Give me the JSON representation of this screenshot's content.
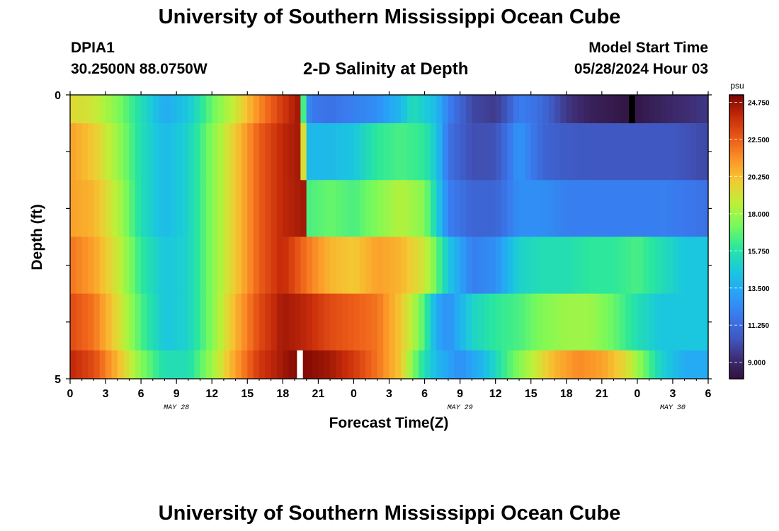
{
  "header": {
    "title": "University of Southern Mississippi Ocean Cube",
    "station_id": "DPIA1",
    "coords": "30.2500N  88.0750W",
    "subtitle": "2-D Salinity at Depth",
    "model_label": "Model Start Time",
    "model_time": "05/28/2024 Hour 03"
  },
  "footer": {
    "title": "University of Southern Mississippi Ocean Cube"
  },
  "chart_data": {
    "type": "heatmap",
    "title": "2-D Salinity at Depth",
    "xlabel": "Forecast Time(Z)",
    "ylabel": "Depth (ft)",
    "x_ticks": [
      "0",
      "3",
      "6",
      "9",
      "12",
      "15",
      "18",
      "21",
      "0",
      "3",
      "6",
      "9",
      "12",
      "15",
      "18",
      "21",
      "0",
      "3",
      "6"
    ],
    "date_labels": [
      "MAY 28",
      "MAY 29",
      "MAY 30"
    ],
    "y_ticks": [
      "0",
      "5"
    ],
    "ylim": [
      0,
      5
    ],
    "x_range_hours": [
      0,
      54
    ],
    "colorbar": {
      "unit": "psu",
      "ticks": [
        "24.750",
        "22.500",
        "20.250",
        "18.000",
        "15.750",
        "13.500",
        "11.250",
        "9.000"
      ],
      "min": 8.0,
      "max": 25.2
    },
    "rows": [
      {
        "depth_band": [
          0.0,
          0.5
        ],
        "salinity": [
          [
            0,
            19.5
          ],
          [
            2,
            19.0
          ],
          [
            4,
            17.5
          ],
          [
            6,
            15.5
          ],
          [
            8,
            13.5
          ],
          [
            10,
            14.5
          ],
          [
            12,
            17.0
          ],
          [
            14,
            19.0
          ],
          [
            16,
            21.5
          ],
          [
            18,
            23.5
          ],
          [
            19.3,
            24.5
          ],
          [
            19.8,
            15.5
          ],
          [
            20.3,
            11.8
          ],
          [
            22,
            11.5
          ],
          [
            24,
            12.0
          ],
          [
            26,
            12.5
          ],
          [
            28,
            14.0
          ],
          [
            29,
            15.5
          ],
          [
            31,
            14.0
          ],
          [
            32,
            12.0
          ],
          [
            34,
            10.0
          ],
          [
            36,
            9.6
          ],
          [
            37,
            10.5
          ],
          [
            38,
            12.0
          ],
          [
            40,
            11.2
          ],
          [
            42,
            9.5
          ],
          [
            44,
            8.7
          ],
          [
            47,
            8.2
          ],
          [
            48,
            8.3
          ],
          [
            51,
            9.0
          ],
          [
            54,
            9.5
          ]
        ]
      },
      {
        "depth_band": [
          0.5,
          1.5
        ],
        "salinity": [
          [
            0,
            21.0
          ],
          [
            2,
            20.0
          ],
          [
            4,
            18.0
          ],
          [
            6,
            15.5
          ],
          [
            8,
            14.0
          ],
          [
            10,
            15.0
          ],
          [
            12,
            17.5
          ],
          [
            14,
            20.0
          ],
          [
            16,
            22.5
          ],
          [
            18,
            24.0
          ],
          [
            19.5,
            24.5
          ],
          [
            20,
            14.0
          ],
          [
            22,
            14.0
          ],
          [
            24,
            14.5
          ],
          [
            26,
            16.0
          ],
          [
            28,
            16.5
          ],
          [
            30,
            16.0
          ],
          [
            31,
            14.5
          ],
          [
            32,
            11.5
          ],
          [
            34,
            10.2
          ],
          [
            36,
            10.3
          ],
          [
            37,
            11.5
          ],
          [
            38,
            12.8
          ],
          [
            40,
            11.0
          ],
          [
            42,
            10.6
          ],
          [
            44,
            10.5
          ],
          [
            48,
            10.5
          ],
          [
            51,
            10.5
          ],
          [
            54,
            10.0
          ]
        ]
      },
      {
        "depth_band": [
          1.5,
          2.5
        ],
        "salinity": [
          [
            0,
            21.0
          ],
          [
            2,
            20.5
          ],
          [
            4,
            18.5
          ],
          [
            6,
            15.5
          ],
          [
            8,
            14.0
          ],
          [
            10,
            15.0
          ],
          [
            12,
            17.5
          ],
          [
            14,
            20.0
          ],
          [
            16,
            22.5
          ],
          [
            18,
            24.0
          ],
          [
            19.8,
            24.5
          ],
          [
            20.2,
            16.5
          ],
          [
            22,
            17.0
          ],
          [
            24,
            16.5
          ],
          [
            26,
            17.5
          ],
          [
            28,
            18.5
          ],
          [
            30,
            17.5
          ],
          [
            31,
            15.0
          ],
          [
            32,
            12.0
          ],
          [
            34,
            11.0
          ],
          [
            36,
            11.0
          ],
          [
            38,
            12.5
          ],
          [
            40,
            12.5
          ],
          [
            42,
            12.0
          ],
          [
            46,
            12.0
          ],
          [
            50,
            12.0
          ],
          [
            54,
            11.5
          ]
        ]
      },
      {
        "depth_band": [
          2.5,
          3.5
        ],
        "salinity": [
          [
            0,
            22.0
          ],
          [
            2,
            21.0
          ],
          [
            4,
            19.0
          ],
          [
            6,
            16.0
          ],
          [
            8,
            14.5
          ],
          [
            10,
            15.0
          ],
          [
            12,
            17.5
          ],
          [
            14,
            20.0
          ],
          [
            16,
            22.5
          ],
          [
            18,
            24.0
          ],
          [
            20,
            22.0
          ],
          [
            22,
            20.5
          ],
          [
            24,
            20.0
          ],
          [
            26,
            21.0
          ],
          [
            28,
            20.5
          ],
          [
            30,
            19.0
          ],
          [
            31,
            17.0
          ],
          [
            32,
            14.5
          ],
          [
            34,
            12.0
          ],
          [
            36,
            12.5
          ],
          [
            38,
            15.0
          ],
          [
            40,
            15.5
          ],
          [
            42,
            15.5
          ],
          [
            44,
            16.0
          ],
          [
            46,
            16.0
          ],
          [
            48,
            16.5
          ],
          [
            50,
            15.5
          ],
          [
            52,
            14.5
          ],
          [
            54,
            14.5
          ]
        ]
      },
      {
        "depth_band": [
          3.5,
          4.5
        ],
        "salinity": [
          [
            0,
            23.0
          ],
          [
            2,
            22.0
          ],
          [
            4,
            19.5
          ],
          [
            6,
            16.5
          ],
          [
            8,
            14.5
          ],
          [
            10,
            15.0
          ],
          [
            12,
            17.5
          ],
          [
            14,
            20.5
          ],
          [
            16,
            23.0
          ],
          [
            18,
            24.5
          ],
          [
            20,
            24.0
          ],
          [
            22,
            23.0
          ],
          [
            24,
            22.5
          ],
          [
            26,
            22.0
          ],
          [
            28,
            20.0
          ],
          [
            29,
            18.5
          ],
          [
            30,
            16.5
          ],
          [
            31,
            13.5
          ],
          [
            32,
            12.5
          ],
          [
            34,
            15.0
          ],
          [
            36,
            16.0
          ],
          [
            38,
            16.5
          ],
          [
            40,
            17.5
          ],
          [
            42,
            18.0
          ],
          [
            44,
            18.0
          ],
          [
            46,
            17.0
          ],
          [
            48,
            15.5
          ],
          [
            50,
            14.5
          ],
          [
            52,
            14.5
          ],
          [
            54,
            14.5
          ]
        ]
      },
      {
        "depth_band": [
          4.5,
          5.0
        ],
        "salinity": [
          [
            0,
            24.0
          ],
          [
            2,
            23.0
          ],
          [
            4,
            20.5
          ],
          [
            6,
            17.5
          ],
          [
            8,
            15.5
          ],
          [
            10,
            15.5
          ],
          [
            12,
            18.0
          ],
          [
            14,
            21.0
          ],
          [
            16,
            23.5
          ],
          [
            19,
            25.0
          ],
          [
            20,
            25.0
          ],
          [
            22,
            24.5
          ],
          [
            24,
            23.5
          ],
          [
            26,
            22.0
          ],
          [
            28,
            20.0
          ],
          [
            29,
            17.5
          ],
          [
            30,
            15.5
          ],
          [
            31,
            14.0
          ],
          [
            33,
            12.5
          ],
          [
            35,
            14.0
          ],
          [
            37,
            16.5
          ],
          [
            39,
            18.5
          ],
          [
            41,
            20.5
          ],
          [
            43,
            21.5
          ],
          [
            45,
            21.0
          ],
          [
            47,
            19.5
          ],
          [
            48,
            18.0
          ],
          [
            50,
            15.0
          ],
          [
            52,
            13.5
          ],
          [
            54,
            13.5
          ]
        ]
      }
    ],
    "missing_cells": [
      {
        "x_hours": [
          19.2,
          19.7
        ],
        "depth_band": [
          4.5,
          5.0
        ],
        "color": "#ffffff"
      },
      {
        "x_hours": [
          47.3,
          47.8
        ],
        "depth_band": [
          0.0,
          0.5
        ],
        "color": "#000000"
      }
    ]
  }
}
